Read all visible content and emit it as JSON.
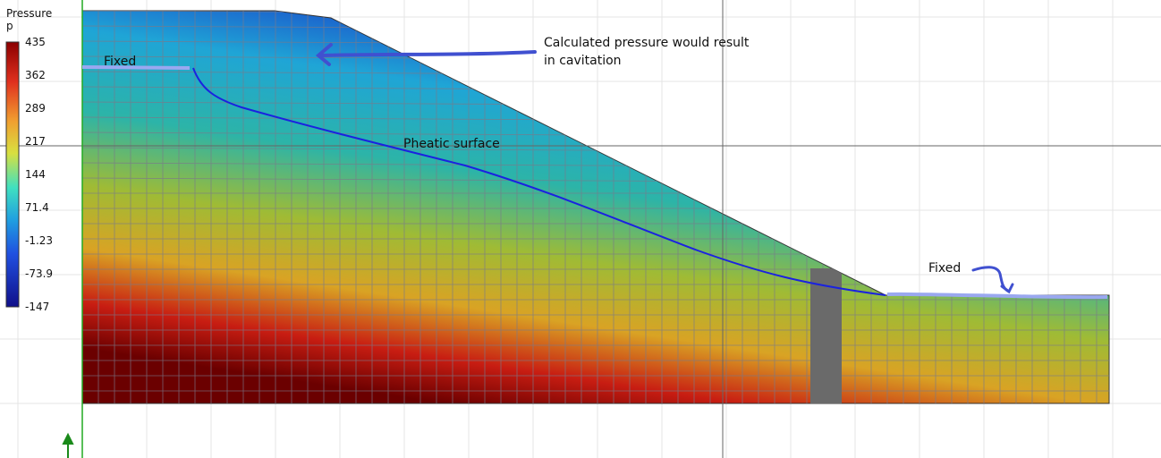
{
  "legend": {
    "title": "Pressure",
    "variable": "p",
    "labels": [
      "435",
      "362",
      "289",
      "217",
      "144",
      "71.4",
      "-1.23",
      "-73.9",
      "-147"
    ]
  },
  "annotations": {
    "fixed_left": "Fixed",
    "cavitation": "Calculated pressure would result in cavitation",
    "phreatic": "Pheatic surface",
    "fixed_right": "Fixed"
  }
}
